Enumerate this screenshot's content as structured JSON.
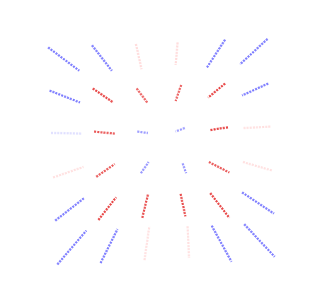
{
  "figure": {
    "type": "glyph-field",
    "description_visible_text": ""
  },
  "palette": {
    "red": "#e84a4a",
    "blue": "#7f7fff",
    "faint_red": "#ffd0d0",
    "faint_blue": "#d6d6ff"
  }
}
